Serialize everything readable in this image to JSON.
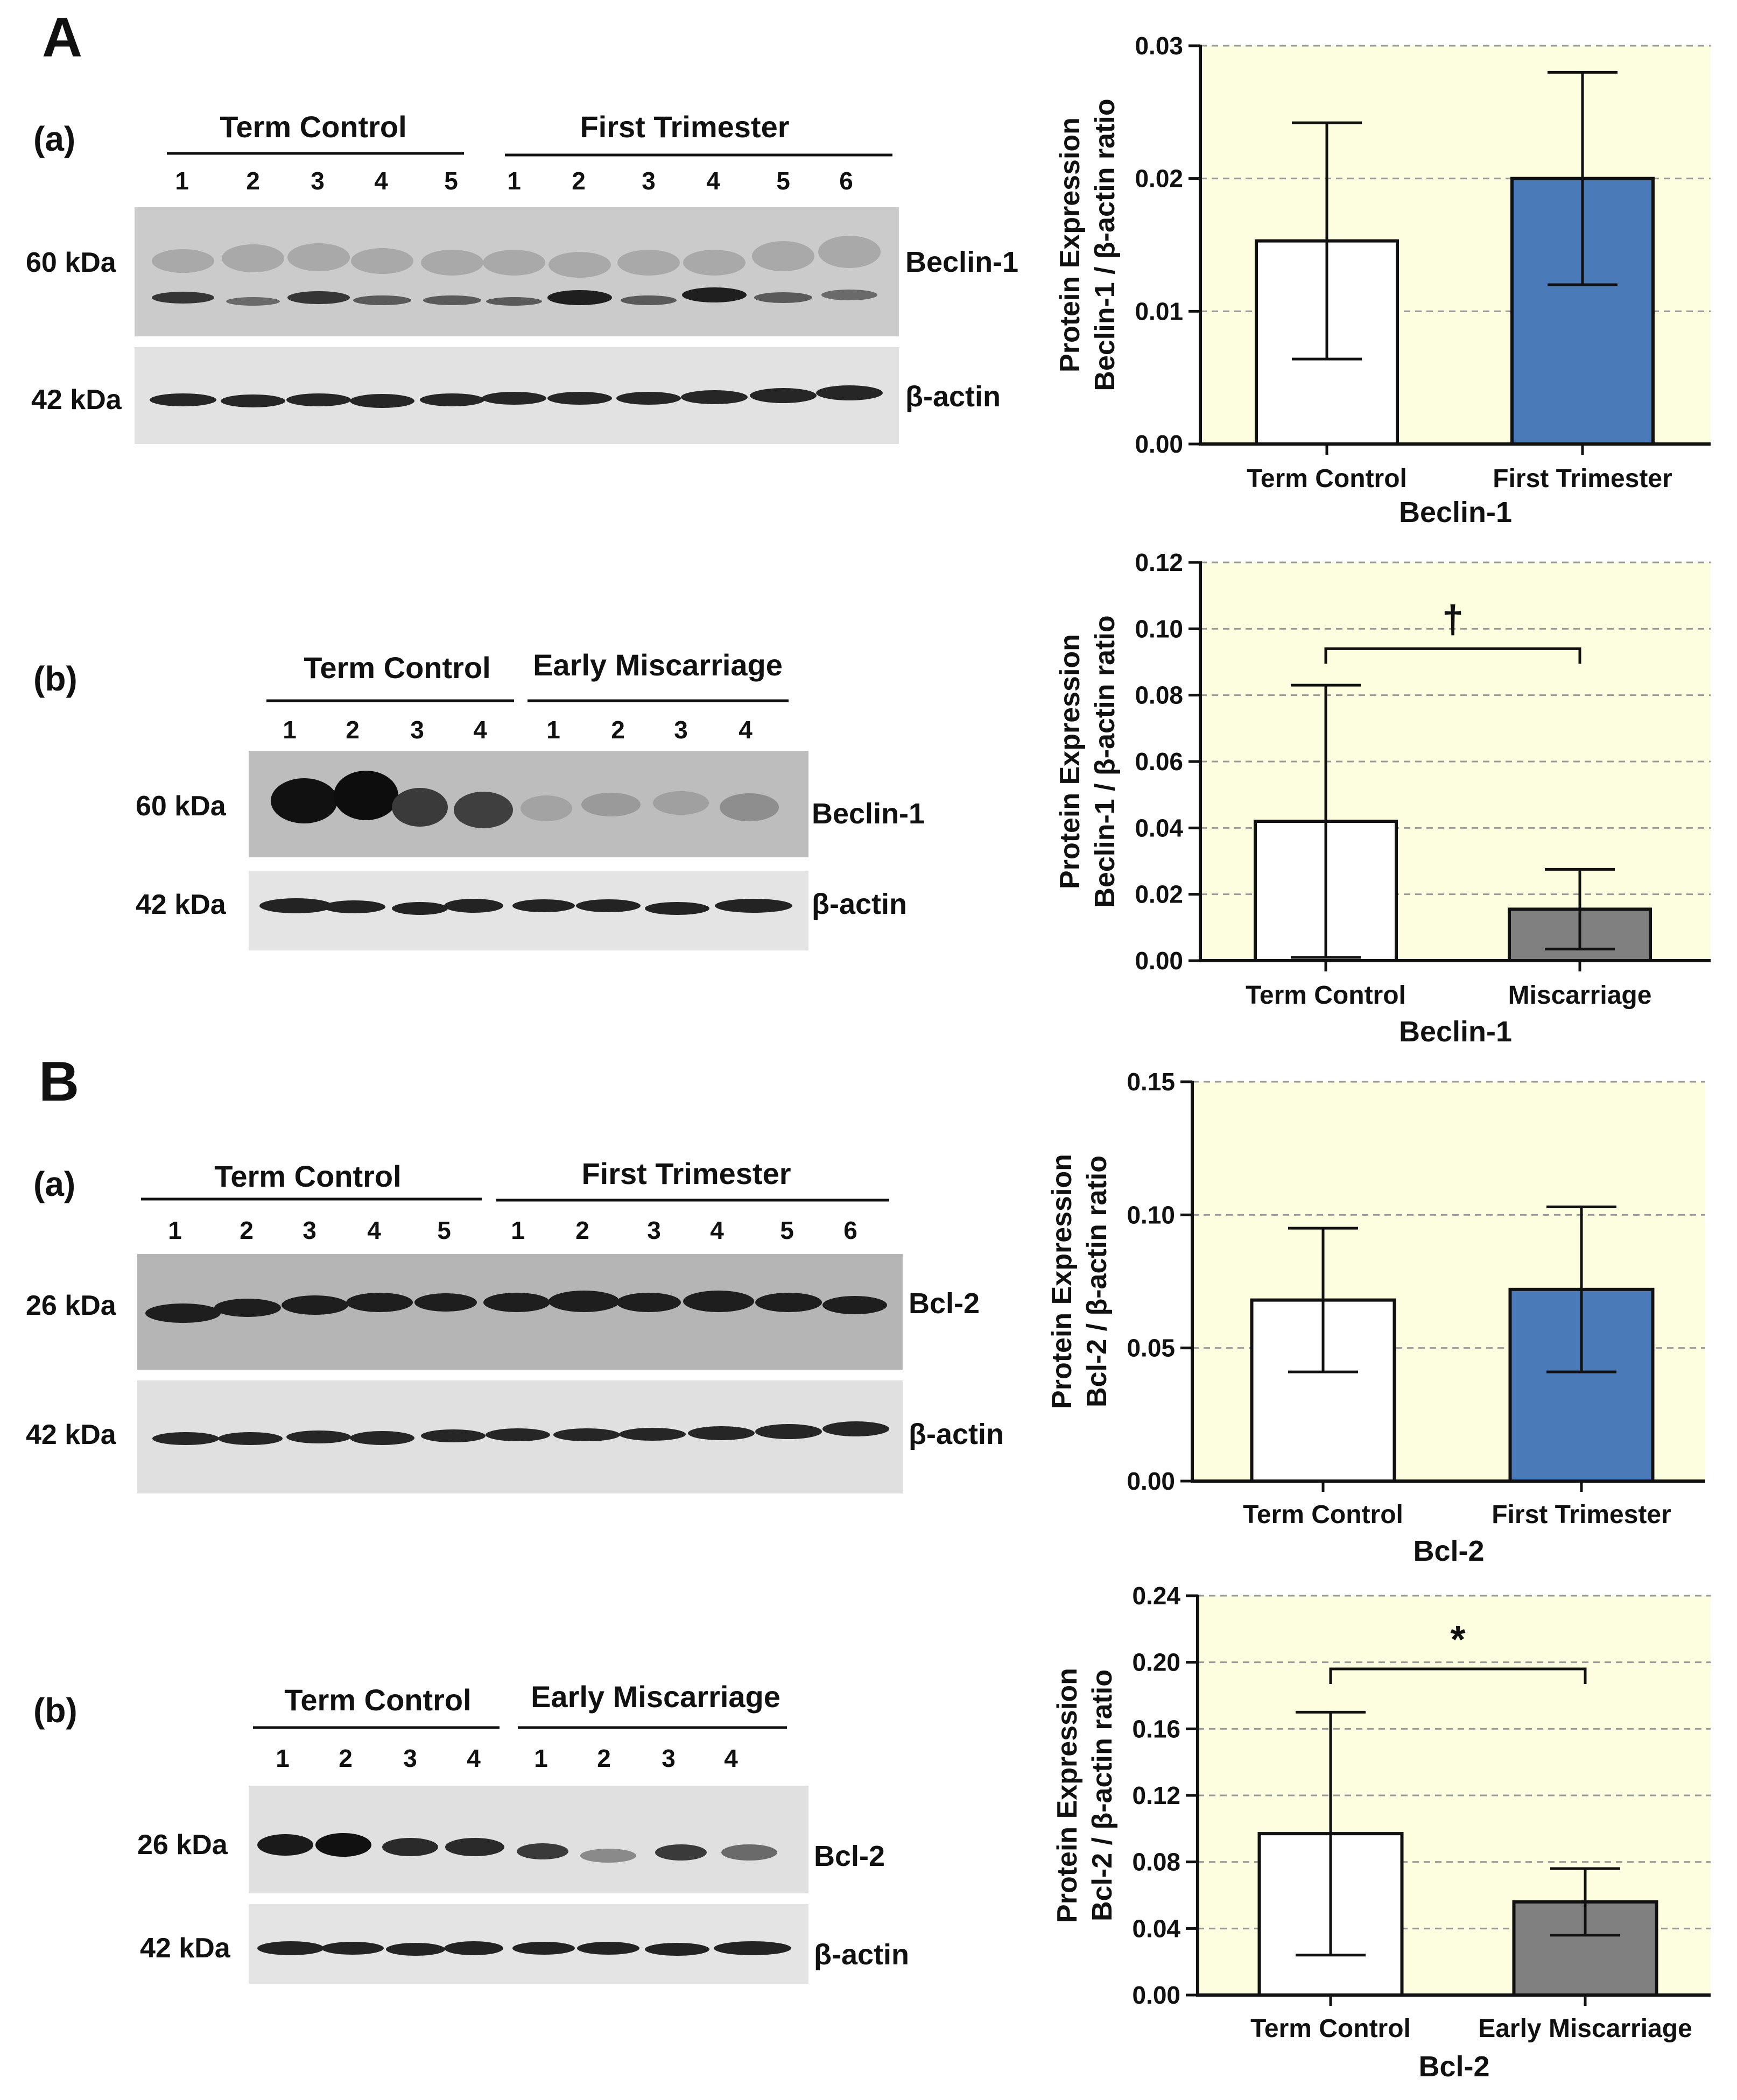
{
  "sections": [
    {
      "letter": "A"
    },
    {
      "letter": "B"
    }
  ],
  "blots": [
    {
      "sub": "(a)",
      "groups": [
        {
          "name": "Term Control",
          "lanes": [
            "1",
            "2",
            "3",
            "4",
            "5"
          ]
        },
        {
          "name": "First Trimester",
          "lanes": [
            "1",
            "2",
            "3",
            "4",
            "5",
            "6"
          ]
        }
      ],
      "strips": [
        {
          "kda": "60 kDa",
          "protein": "Beclin-1"
        },
        {
          "kda": "42 kDa",
          "protein": "β-actin"
        }
      ]
    },
    {
      "sub": "(b)",
      "groups": [
        {
          "name": "Term Control",
          "lanes": [
            "1",
            "2",
            "3",
            "4"
          ]
        },
        {
          "name": "Early Miscarriage",
          "lanes": [
            "1",
            "2",
            "3",
            "4"
          ]
        }
      ],
      "strips": [
        {
          "kda": "60 kDa",
          "protein": "Beclin-1"
        },
        {
          "kda": "42 kDa",
          "protein": "β-actin"
        }
      ]
    },
    {
      "sub": "(a)",
      "groups": [
        {
          "name": "Term Control",
          "lanes": [
            "1",
            "2",
            "3",
            "4",
            "5"
          ]
        },
        {
          "name": "First Trimester",
          "lanes": [
            "1",
            "2",
            "3",
            "4",
            "5",
            "6"
          ]
        }
      ],
      "strips": [
        {
          "kda": "26 kDa",
          "protein": "Bcl-2"
        },
        {
          "kda": "42 kDa",
          "protein": "β-actin"
        }
      ]
    },
    {
      "sub": "(b)",
      "groups": [
        {
          "name": "Term Control",
          "lanes": [
            "1",
            "2",
            "3",
            "4"
          ]
        },
        {
          "name": "Early Miscarriage",
          "lanes": [
            "1",
            "2",
            "3",
            "4"
          ]
        }
      ],
      "strips": [
        {
          "kda": "26 kDa",
          "protein": "Bcl-2"
        },
        {
          "kda": "42 kDa",
          "protein": "β-actin"
        }
      ]
    }
  ],
  "chart_data": [
    {
      "type": "bar",
      "categories": [
        "Term Control",
        "First Trimester"
      ],
      "values": [
        0.0153,
        0.02
      ],
      "errors": [
        0.0089,
        0.008
      ],
      "bar_colors": [
        "#ffffff",
        "#4a7ab8"
      ],
      "xlabel": "Beclin-1",
      "ylabel_line1": "Protein Expression",
      "ylabel_line2": "Beclin-1 / β-actin ratio",
      "ylim": [
        0,
        0.03
      ],
      "yticks": [
        "0.00",
        "0.01",
        "0.02",
        "0.03"
      ],
      "grid": true,
      "background": "#fdfde0",
      "significance": null
    },
    {
      "type": "bar",
      "categories": [
        "Term Control",
        "Miscarriage"
      ],
      "values": [
        0.042,
        0.0155
      ],
      "errors": [
        0.041,
        0.012
      ],
      "bar_colors": [
        "#ffffff",
        "#808080"
      ],
      "xlabel": "Beclin-1",
      "ylabel_line1": "Protein Expression",
      "ylabel_line2": "Beclin-1 / β-actin ratio",
      "ylim": [
        0,
        0.12
      ],
      "yticks": [
        "0.00",
        "0.02",
        "0.04",
        "0.06",
        "0.08",
        "0.10",
        "0.12"
      ],
      "grid": true,
      "background": "#fdfde0",
      "significance": {
        "symbol": "†",
        "y": 0.094
      }
    },
    {
      "type": "bar",
      "categories": [
        "Term Control",
        "First Trimester"
      ],
      "values": [
        0.068,
        0.072
      ],
      "errors": [
        0.027,
        0.031
      ],
      "bar_colors": [
        "#ffffff",
        "#4a7ab8"
      ],
      "xlabel": "Bcl-2",
      "ylabel_line1": "Protein Expression",
      "ylabel_line2": "Bcl-2 / β-actin ratio",
      "ylim": [
        0,
        0.15
      ],
      "yticks": [
        "0.00",
        "0.05",
        "0.10",
        "0.15"
      ],
      "grid": true,
      "background": "#fdfde0",
      "significance": null
    },
    {
      "type": "bar",
      "categories": [
        "Term Control",
        "Early Miscarriage"
      ],
      "values": [
        0.097,
        0.056
      ],
      "errors": [
        0.073,
        0.02
      ],
      "bar_colors": [
        "#ffffff",
        "#808080"
      ],
      "xlabel": "Bcl-2",
      "ylabel_line1": "Protein Expression",
      "ylabel_line2": "Bcl-2 / β-actin ratio",
      "ylim": [
        0,
        0.24
      ],
      "yticks": [
        "0.00",
        "0.04",
        "0.08",
        "0.12",
        "0.16",
        "0.20",
        "0.24"
      ],
      "grid": true,
      "background": "#fdfde0",
      "significance": {
        "symbol": "*",
        "y": 0.196
      }
    }
  ]
}
